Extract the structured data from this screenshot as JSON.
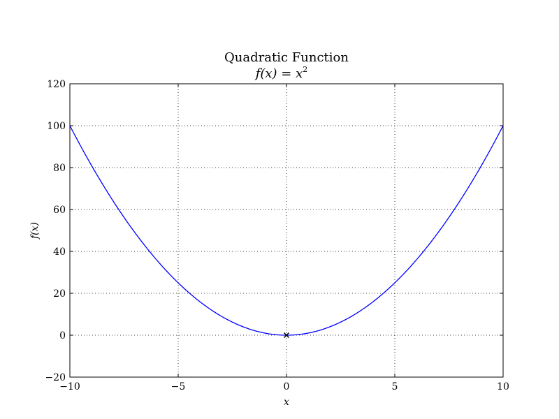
{
  "chart_data": {
    "type": "line",
    "title": "Quadratic Function",
    "subtitle_main": "f(x) = x",
    "subtitle_exp": "2",
    "xlabel": "x",
    "ylabel": "f(x)",
    "xlim": [
      -10,
      10
    ],
    "ylim": [
      -20,
      120
    ],
    "xticks": [
      -10,
      -5,
      0,
      5,
      10
    ],
    "xtick_labels": [
      "−10",
      "−5",
      "0",
      "5",
      "10"
    ],
    "yticks": [
      -20,
      0,
      20,
      40,
      60,
      80,
      100,
      120
    ],
    "ytick_labels": [
      "−20",
      "0",
      "20",
      "40",
      "60",
      "80",
      "100",
      "120"
    ],
    "grid": true,
    "series": [
      {
        "function": "x^2",
        "x_range": [
          -10,
          10
        ],
        "color": "#0000ff"
      }
    ],
    "points": [
      {
        "x": 0,
        "y": 0,
        "marker": "x",
        "color": "#000000"
      }
    ]
  }
}
